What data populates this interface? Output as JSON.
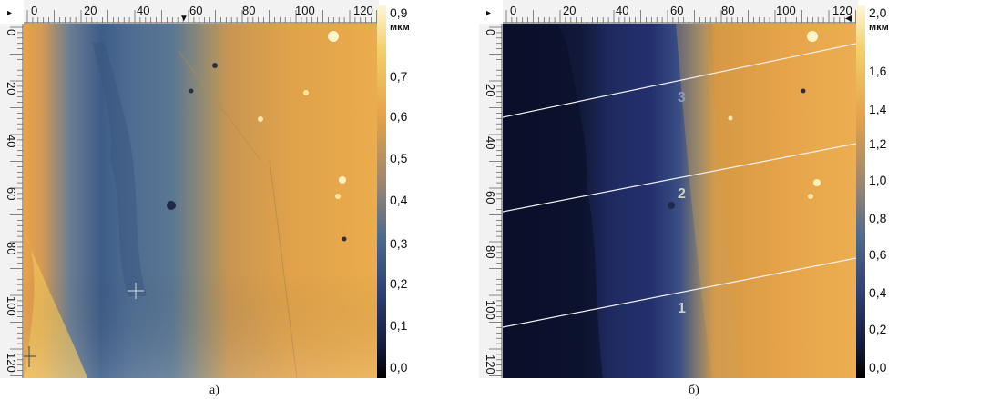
{
  "panels": [
    {
      "caption": "а)",
      "x_ticks": [
        "0",
        "20",
        "40",
        "60",
        "80",
        "100",
        "120"
      ],
      "y_ticks": [
        "0",
        "20",
        "40",
        "60",
        "80",
        "100",
        "120"
      ],
      "colorbar": {
        "labels": [
          "0,9",
          "0,7",
          "0,6",
          "0,5",
          "0,4",
          "0,3",
          "0,2",
          "0,1",
          "0,0"
        ],
        "unit": "мкм"
      }
    },
    {
      "caption": "б)",
      "x_ticks": [
        "0",
        "20",
        "40",
        "60",
        "80",
        "100",
        "120"
      ],
      "y_ticks": [
        "0",
        "20",
        "40",
        "60",
        "80",
        "100",
        "120"
      ],
      "colorbar": {
        "labels": [
          "2,0",
          "1,6",
          "1,4",
          "1,2",
          "1,0",
          "0,8",
          "0,6",
          "0,4",
          "0,2",
          "0,0"
        ],
        "unit": "мкм"
      },
      "profile_labels": [
        "3",
        "2",
        "1"
      ]
    }
  ]
}
